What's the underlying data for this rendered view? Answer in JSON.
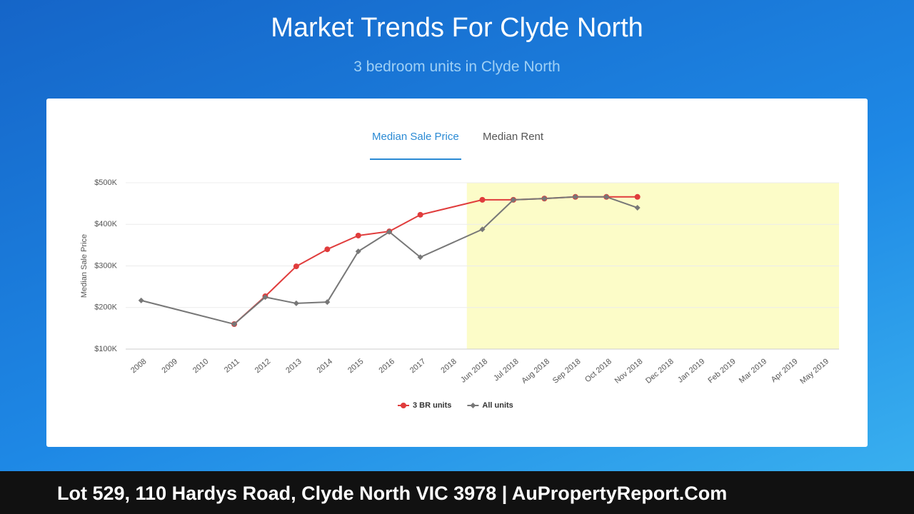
{
  "header": {
    "title": "Market Trends For Clyde North",
    "subtitle": "3 bedroom units in Clyde North"
  },
  "tabs": [
    "Median Sale Price",
    "Median Rent"
  ],
  "footer": "Lot 529, 110 Hardys Road, Clyde North VIC 3978 | AuPropertyReport.Com",
  "chart_data": {
    "type": "line",
    "y_label": "Median Sale Price",
    "categories": [
      "2008",
      "2009",
      "2010",
      "2011",
      "2012",
      "2013",
      "2014",
      "2015",
      "2016",
      "2017",
      "2018",
      "Jun 2018",
      "Jul 2018",
      "Aug 2018",
      "Sep 2018",
      "Oct 2018",
      "Nov 2018",
      "Dec 2018",
      "Jan 2019",
      "Feb 2019",
      "Mar 2019",
      "Apr 2019",
      "May 2019"
    ],
    "series": [
      {
        "name": "3 BR units",
        "color": "#e03c3c",
        "marker": "circle",
        "values": [
          null,
          null,
          null,
          160000,
          227000,
          299000,
          340000,
          373000,
          383000,
          423000,
          null,
          459000,
          459000,
          462000,
          466000,
          466000,
          466000,
          null,
          null,
          null,
          null,
          null,
          null
        ]
      },
      {
        "name": "All units",
        "color": "#777777",
        "marker": "diamond",
        "values": [
          217000,
          null,
          null,
          160000,
          225000,
          210000,
          213000,
          335000,
          382000,
          321000,
          null,
          388000,
          459000,
          462000,
          466000,
          466000,
          440000,
          null,
          null,
          null,
          null,
          null,
          null
        ]
      }
    ],
    "ylim": [
      100000,
      500000
    ],
    "yticks": [
      {
        "value": 100000,
        "label": "$100K"
      },
      {
        "value": 200000,
        "label": "$200K"
      },
      {
        "value": 300000,
        "label": "$300K"
      },
      {
        "value": 400000,
        "label": "$400K"
      },
      {
        "value": 500000,
        "label": "$500K"
      }
    ],
    "grid": true,
    "legend": "bottom",
    "highlight": {
      "from": "Jun 2018",
      "color": "#fcfcc8"
    }
  }
}
